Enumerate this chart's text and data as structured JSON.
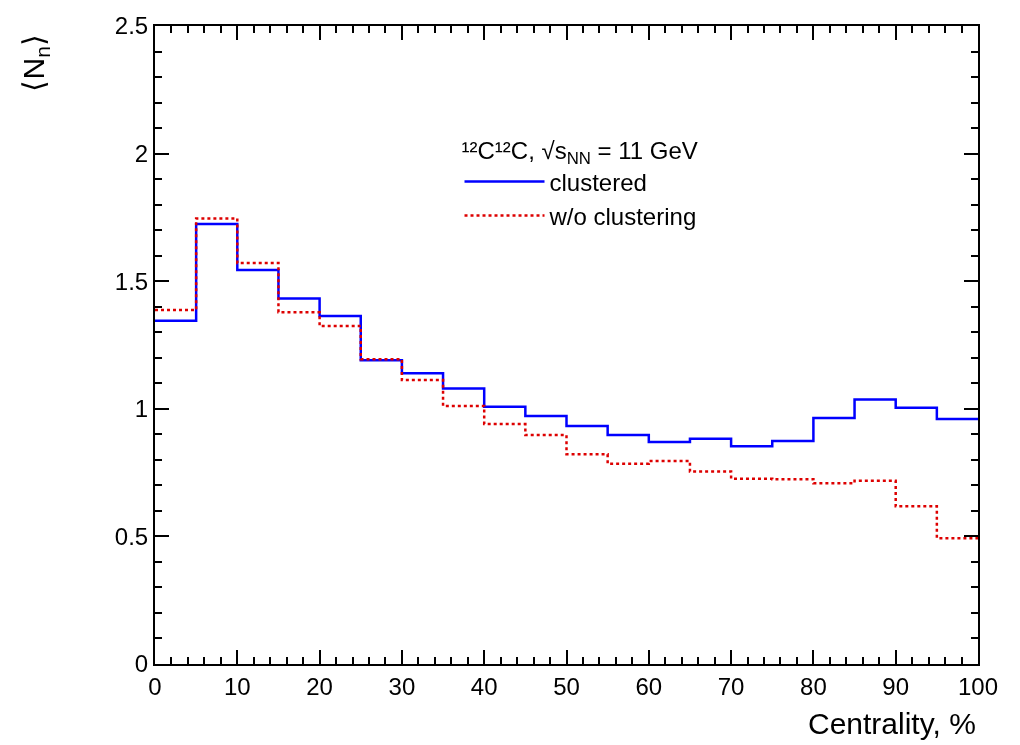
{
  "chart_data": {
    "type": "histogram",
    "legend_title": "¹²C¹²C, √s$_{NN}$ = 11 GeV",
    "xlabel": "Centrality, %",
    "ylabel": "⟨N$_{n}$⟩",
    "bins": [
      0,
      5,
      10,
      15,
      20,
      25,
      30,
      35,
      40,
      45,
      50,
      55,
      60,
      65,
      70,
      75,
      80,
      85,
      90,
      95,
      100
    ],
    "series": [
      {
        "name": "clustered",
        "color": "#0000ff",
        "line_style": "solid",
        "values": [
          1.345,
          1.724,
          1.544,
          1.432,
          1.364,
          1.19,
          1.139,
          1.08,
          1.008,
          0.972,
          0.933,
          0.897,
          0.87,
          0.883,
          0.853,
          0.874,
          0.964,
          1.036,
          1.004,
          0.96
        ]
      },
      {
        "name": "w/o clustering",
        "color": "#dd0000",
        "line_style": "dotted",
        "values": [
          1.387,
          1.746,
          1.571,
          1.378,
          1.324,
          1.194,
          1.113,
          1.011,
          0.94,
          0.897,
          0.822,
          0.785,
          0.795,
          0.754,
          0.726,
          0.724,
          0.708,
          0.718,
          0.618,
          0.493
        ]
      }
    ],
    "xlim": [
      0,
      100
    ],
    "xticks": [
      0,
      10,
      20,
      30,
      40,
      50,
      60,
      70,
      80,
      90,
      100
    ],
    "ylim": [
      0,
      2.5
    ],
    "yticks": [
      0,
      0.5,
      1,
      1.5,
      2,
      2.5
    ],
    "legend": "top right"
  }
}
